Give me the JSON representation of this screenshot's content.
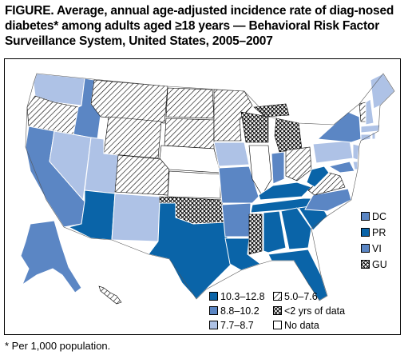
{
  "title": {
    "lead": "FIGURE.",
    "text": " Average, annual age-adjusted incidence rate of diag-nosed diabetes* among adults aged ≥18 years — Behavioral Risk Factor Surveillance System, United States, 2005–2007"
  },
  "legend": {
    "items": [
      {
        "label": "10.3–12.8",
        "class": "c1"
      },
      {
        "label": "8.8–10.2",
        "class": "c2"
      },
      {
        "label": "7.7–8.7",
        "class": "c3"
      },
      {
        "label": "5.0–7.6",
        "class": "hatch"
      },
      {
        "label": "<2 yrs of data",
        "class": "cross"
      },
      {
        "label": "No data",
        "class": "nodata"
      }
    ]
  },
  "territories": [
    {
      "label": "DC",
      "class": "c2"
    },
    {
      "label": "PR",
      "class": "c1"
    },
    {
      "label": "VI",
      "class": "c2"
    },
    {
      "label": "GU",
      "class": "cross"
    }
  ],
  "colors": {
    "c1": "#0a64a8",
    "c2": "#5b86c4",
    "c3": "#aec2e6",
    "nodata": "#ffffff"
  },
  "footnote": "* Per 1,000 population."
}
